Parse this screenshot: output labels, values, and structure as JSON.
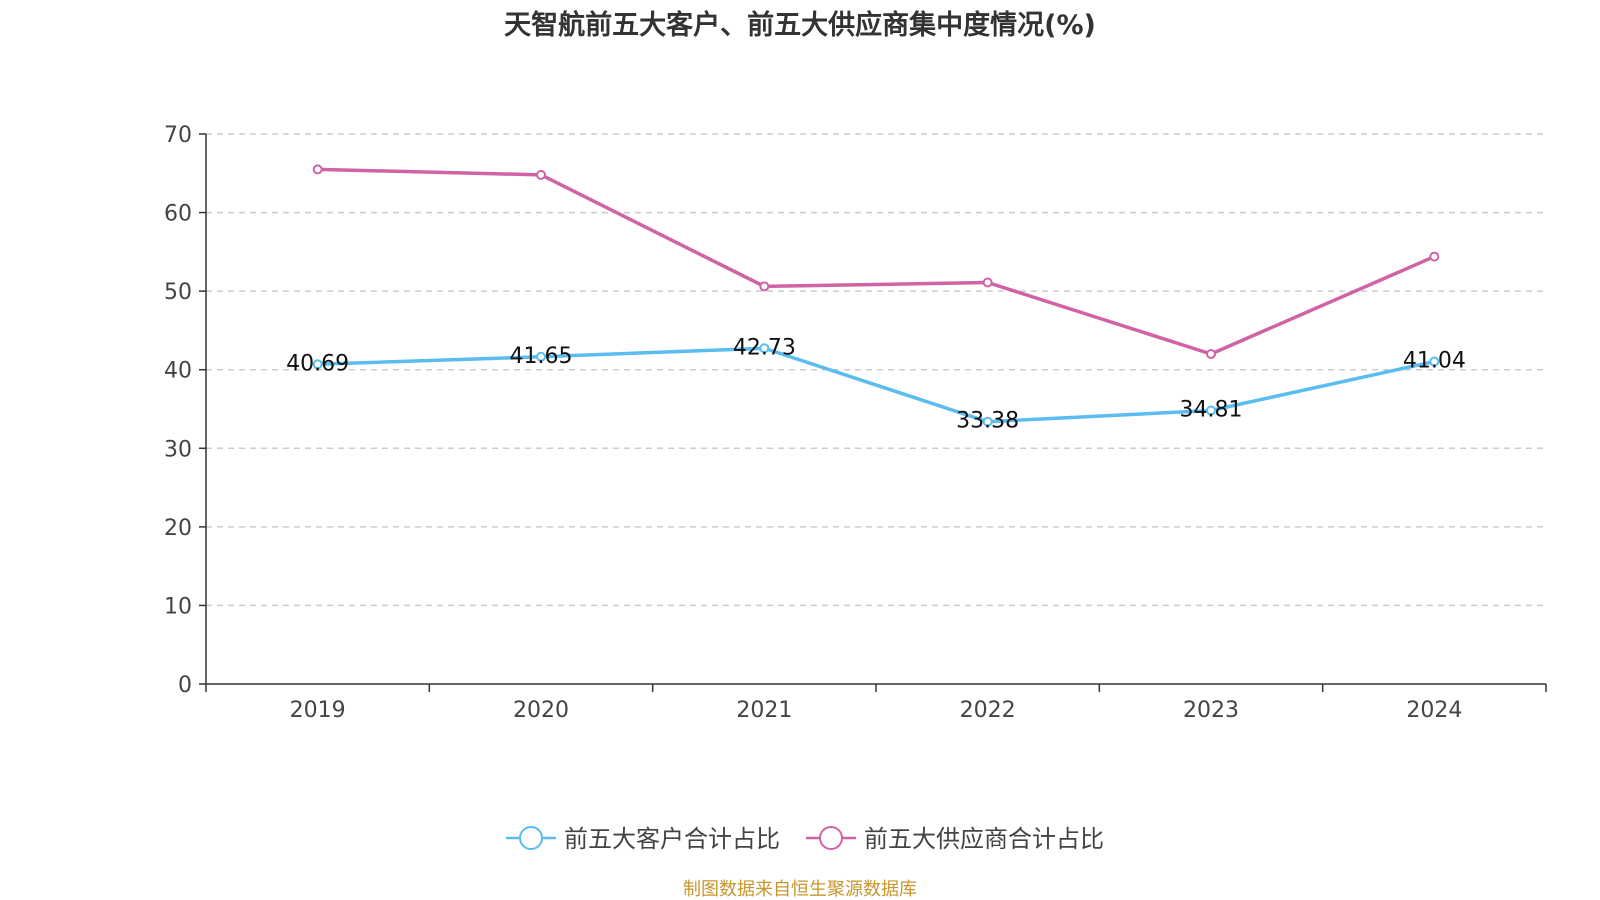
{
  "chart_data": {
    "type": "line",
    "title": "天智航前五大客户、前五大供应商集中度情况(%)",
    "categories": [
      "2019",
      "2020",
      "2021",
      "2022",
      "2023",
      "2024"
    ],
    "ylim": [
      0,
      70
    ],
    "yticks": [
      "0",
      "10",
      "20",
      "30",
      "40",
      "50",
      "60",
      "70"
    ],
    "grid": true,
    "legend_position": "bottom",
    "series": [
      {
        "name": "前五大客户合计占比",
        "color": "#5bbcf0",
        "values": [
          40.69,
          41.65,
          42.73,
          33.38,
          34.81,
          41.04
        ],
        "labels": [
          "40.69",
          "41.65",
          "42.73",
          "33.38",
          "34.81",
          "41.04"
        ]
      },
      {
        "name": "前五大供应商合计占比",
        "color": "#d162a4",
        "values": [
          65.5,
          64.8,
          50.6,
          51.1,
          42.0,
          54.4
        ],
        "labels": []
      }
    ]
  },
  "source_text": "制图数据来自恒生聚源数据库",
  "source_color": "#c8962d"
}
